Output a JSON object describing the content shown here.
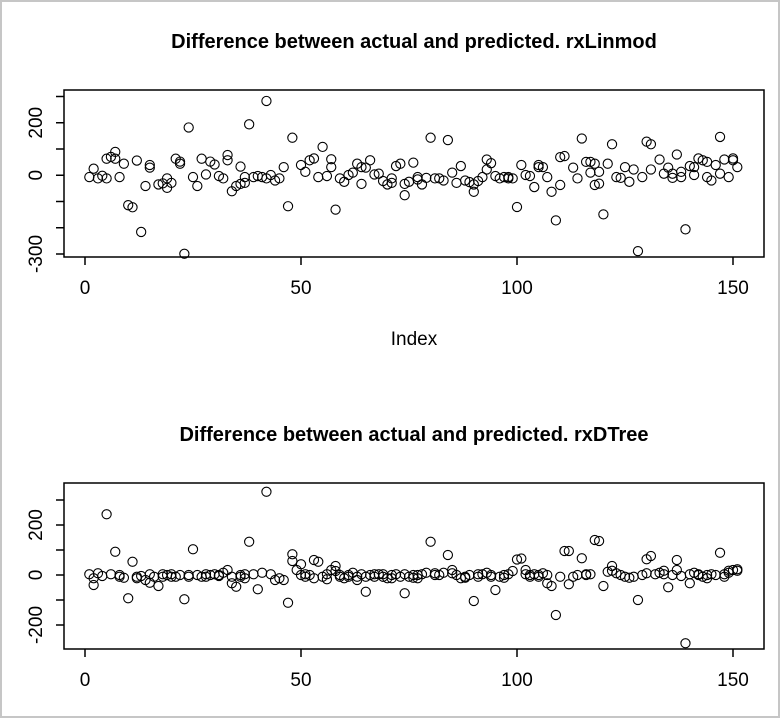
{
  "window": {
    "background": "#ffffff",
    "border_color": "#c6c6c6"
  },
  "chart_data": [
    {
      "type": "scatter",
      "title": "Difference between actual and predicted. rxLinmod",
      "xlabel": "Index",
      "ylabel": "",
      "marker": "open-circle",
      "point_color": "#000000",
      "grid": false,
      "legend": null,
      "xlim": [
        -5,
        157
      ],
      "ylim": [
        -320,
        325
      ],
      "x_ticks": [
        0,
        50,
        100,
        150
      ],
      "x_tick_labels": [
        "0",
        "50",
        "100",
        "150"
      ],
      "y_ticks": [
        300,
        200,
        100,
        0,
        -100,
        -200,
        -300
      ],
      "y_labeled_ticks": [
        200,
        0,
        -300
      ],
      "y_tick_labels": [
        "200",
        "0",
        "-300"
      ],
      "points": [
        [
          1,
          -7
        ],
        [
          2,
          25
        ],
        [
          3,
          -12
        ],
        [
          4,
          -2
        ],
        [
          5,
          -12
        ],
        [
          5,
          63
        ],
        [
          6,
          70
        ],
        [
          7,
          89
        ],
        [
          7,
          63
        ],
        [
          8,
          -7
        ],
        [
          9,
          44
        ],
        [
          10,
          -114
        ],
        [
          11,
          -122
        ],
        [
          12,
          56
        ],
        [
          13,
          -216
        ],
        [
          14,
          -41
        ],
        [
          15,
          39
        ],
        [
          15,
          29
        ],
        [
          17,
          -35
        ],
        [
          18,
          -31
        ],
        [
          19,
          -48
        ],
        [
          19,
          -12
        ],
        [
          20,
          -29
        ],
        [
          21,
          63
        ],
        [
          22,
          52
        ],
        [
          22,
          44
        ],
        [
          23,
          -299
        ],
        [
          24,
          182
        ],
        [
          25,
          -7
        ],
        [
          26,
          -41
        ],
        [
          27,
          63
        ],
        [
          28,
          3
        ],
        [
          29,
          52
        ],
        [
          30,
          41
        ],
        [
          31,
          -3
        ],
        [
          32,
          -12
        ],
        [
          33,
          77
        ],
        [
          33,
          57
        ],
        [
          34,
          -61
        ],
        [
          35,
          -41
        ],
        [
          36,
          33
        ],
        [
          36,
          -33
        ],
        [
          37,
          -29
        ],
        [
          37,
          -7
        ],
        [
          38,
          194
        ],
        [
          39,
          -7
        ],
        [
          40,
          -3
        ],
        [
          41,
          -7
        ],
        [
          42,
          283
        ],
        [
          42,
          -12
        ],
        [
          43,
          1
        ],
        [
          44,
          -20
        ],
        [
          45,
          -12
        ],
        [
          46,
          31
        ],
        [
          47,
          -118
        ],
        [
          48,
          143
        ],
        [
          50,
          39
        ],
        [
          51,
          13
        ],
        [
          52,
          57
        ],
        [
          53,
          64
        ],
        [
          54,
          -7
        ],
        [
          55,
          108
        ],
        [
          56,
          -3
        ],
        [
          57,
          31
        ],
        [
          57,
          61
        ],
        [
          58,
          -131
        ],
        [
          59,
          -12
        ],
        [
          60,
          -25
        ],
        [
          61,
          1
        ],
        [
          62,
          10
        ],
        [
          63,
          44
        ],
        [
          64,
          31
        ],
        [
          64,
          -33
        ],
        [
          65,
          29
        ],
        [
          66,
          57
        ],
        [
          67,
          3
        ],
        [
          68,
          6
        ],
        [
          69,
          -22
        ],
        [
          70,
          -35
        ],
        [
          71,
          -12
        ],
        [
          71,
          -29
        ],
        [
          72,
          35
        ],
        [
          73,
          44
        ],
        [
          74,
          -76
        ],
        [
          74,
          -33
        ],
        [
          75,
          -25
        ],
        [
          76,
          48
        ],
        [
          77,
          -7
        ],
        [
          77,
          -16
        ],
        [
          78,
          -35
        ],
        [
          79,
          -10
        ],
        [
          80,
          143
        ],
        [
          81,
          -12
        ],
        [
          82,
          -12
        ],
        [
          83,
          -20
        ],
        [
          84,
          134
        ],
        [
          85,
          10
        ],
        [
          86,
          -29
        ],
        [
          87,
          35
        ],
        [
          88,
          -20
        ],
        [
          89,
          -26
        ],
        [
          90,
          -35
        ],
        [
          90,
          -63
        ],
        [
          91,
          -22
        ],
        [
          92,
          -7
        ],
        [
          93,
          22
        ],
        [
          93,
          60
        ],
        [
          94,
          46
        ],
        [
          95,
          -3
        ],
        [
          96,
          -12
        ],
        [
          97,
          -7
        ],
        [
          98,
          -12
        ],
        [
          98,
          -7
        ],
        [
          99,
          -12
        ],
        [
          100,
          -121
        ],
        [
          101,
          39
        ],
        [
          102,
          1
        ],
        [
          103,
          -3
        ],
        [
          104,
          -45
        ],
        [
          105,
          31
        ],
        [
          105,
          39
        ],
        [
          106,
          31
        ],
        [
          107,
          -7
        ],
        [
          108,
          -63
        ],
        [
          109,
          -172
        ],
        [
          110,
          -37
        ],
        [
          110,
          69
        ],
        [
          111,
          73
        ],
        [
          113,
          29
        ],
        [
          114,
          -12
        ],
        [
          115,
          140
        ],
        [
          116,
          51
        ],
        [
          117,
          10
        ],
        [
          117,
          51
        ],
        [
          118,
          -37
        ],
        [
          118,
          44
        ],
        [
          119,
          13
        ],
        [
          119,
          -32
        ],
        [
          120,
          -149
        ],
        [
          121,
          44
        ],
        [
          122,
          118
        ],
        [
          123,
          -7
        ],
        [
          124,
          -10
        ],
        [
          125,
          31
        ],
        [
          126,
          -25
        ],
        [
          127,
          22
        ],
        [
          128,
          -289
        ],
        [
          129,
          -7
        ],
        [
          130,
          128
        ],
        [
          131,
          22
        ],
        [
          131,
          118
        ],
        [
          133,
          60
        ],
        [
          134,
          6
        ],
        [
          135,
          29
        ],
        [
          136,
          6
        ],
        [
          136,
          -10
        ],
        [
          137,
          79
        ],
        [
          138,
          -7
        ],
        [
          138,
          13
        ],
        [
          139,
          -206
        ],
        [
          140,
          35
        ],
        [
          141,
          31
        ],
        [
          141,
          1
        ],
        [
          142,
          64
        ],
        [
          143,
          57
        ],
        [
          144,
          -7
        ],
        [
          144,
          51
        ],
        [
          145,
          -20
        ],
        [
          146,
          39
        ],
        [
          147,
          6
        ],
        [
          147,
          146
        ],
        [
          148,
          60
        ],
        [
          149,
          -7
        ],
        [
          150,
          64
        ],
        [
          150,
          57
        ],
        [
          151,
          31
        ]
      ]
    },
    {
      "type": "scatter",
      "title": "Difference between actual and predicted. rxDTree",
      "xlabel": "",
      "ylabel": "",
      "marker": "open-circle",
      "point_color": "#000000",
      "grid": false,
      "legend": null,
      "xlim": [
        -5,
        157
      ],
      "ylim": [
        -296,
        368
      ],
      "x_ticks": [
        0,
        50,
        100,
        150
      ],
      "x_tick_labels": [
        "0",
        "50",
        "100",
        "150"
      ],
      "y_ticks": [
        300,
        200,
        100,
        0,
        -100,
        -200
      ],
      "y_labeled_ticks": [
        200,
        0,
        -200
      ],
      "y_tick_labels": [
        "200",
        "0",
        "-200"
      ],
      "points": [
        [
          1,
          3
        ],
        [
          2,
          -13
        ],
        [
          2,
          -40
        ],
        [
          3,
          7
        ],
        [
          4,
          -4
        ],
        [
          5,
          243
        ],
        [
          6,
          3
        ],
        [
          7,
          93
        ],
        [
          8,
          -7
        ],
        [
          8,
          0
        ],
        [
          9,
          -11
        ],
        [
          10,
          -93
        ],
        [
          11,
          53
        ],
        [
          12,
          -7
        ],
        [
          12,
          -13
        ],
        [
          13,
          -4
        ],
        [
          14,
          -20
        ],
        [
          15,
          3
        ],
        [
          15,
          -31
        ],
        [
          16,
          -7
        ],
        [
          17,
          -44
        ],
        [
          18,
          3
        ],
        [
          18,
          -7
        ],
        [
          19,
          0
        ],
        [
          20,
          -7
        ],
        [
          20,
          3
        ],
        [
          21,
          -7
        ],
        [
          22,
          0
        ],
        [
          23,
          -97
        ],
        [
          24,
          0
        ],
        [
          24,
          -7
        ],
        [
          25,
          103
        ],
        [
          26,
          0
        ],
        [
          27,
          -7
        ],
        [
          28,
          3
        ],
        [
          28,
          -7
        ],
        [
          29,
          0
        ],
        [
          30,
          3
        ],
        [
          31,
          0
        ],
        [
          31,
          -4
        ],
        [
          32,
          9
        ],
        [
          33,
          20
        ],
        [
          34,
          -7
        ],
        [
          34,
          -33
        ],
        [
          35,
          -47
        ],
        [
          36,
          0
        ],
        [
          36,
          -7
        ],
        [
          37,
          -13
        ],
        [
          37,
          3
        ],
        [
          38,
          133
        ],
        [
          39,
          3
        ],
        [
          40,
          -57
        ],
        [
          41,
          9
        ],
        [
          42,
          333
        ],
        [
          43,
          3
        ],
        [
          44,
          -20
        ],
        [
          45,
          -13
        ],
        [
          46,
          -20
        ],
        [
          47,
          -111
        ],
        [
          48,
          83
        ],
        [
          48,
          56
        ],
        [
          49,
          20
        ],
        [
          50,
          43
        ],
        [
          50,
          0
        ],
        [
          51,
          3
        ],
        [
          51,
          -7
        ],
        [
          52,
          0
        ],
        [
          53,
          60
        ],
        [
          53,
          -13
        ],
        [
          54,
          53
        ],
        [
          55,
          -7
        ],
        [
          56,
          -17
        ],
        [
          56,
          3
        ],
        [
          57,
          20
        ],
        [
          58,
          36
        ],
        [
          58,
          16
        ],
        [
          59,
          -7
        ],
        [
          59,
          0
        ],
        [
          60,
          -13
        ],
        [
          61,
          0
        ],
        [
          61,
          -7
        ],
        [
          62,
          9
        ],
        [
          63,
          -7
        ],
        [
          63,
          -20
        ],
        [
          64,
          3
        ],
        [
          65,
          -67
        ],
        [
          65,
          -7
        ],
        [
          66,
          0
        ],
        [
          67,
          3
        ],
        [
          67,
          -7
        ],
        [
          68,
          3
        ],
        [
          69,
          -7
        ],
        [
          69,
          3
        ],
        [
          70,
          -13
        ],
        [
          71,
          0
        ],
        [
          71,
          -13
        ],
        [
          72,
          3
        ],
        [
          73,
          -7
        ],
        [
          74,
          -73
        ],
        [
          74,
          3
        ],
        [
          75,
          -7
        ],
        [
          76,
          0
        ],
        [
          76,
          -11
        ],
        [
          77,
          0
        ],
        [
          77,
          -13
        ],
        [
          78,
          3
        ],
        [
          79,
          9
        ],
        [
          80,
          133
        ],
        [
          81,
          0
        ],
        [
          81,
          7
        ],
        [
          82,
          0
        ],
        [
          83,
          9
        ],
        [
          84,
          80
        ],
        [
          85,
          20
        ],
        [
          85,
          7
        ],
        [
          86,
          0
        ],
        [
          87,
          -13
        ],
        [
          88,
          -7
        ],
        [
          88,
          -11
        ],
        [
          89,
          0
        ],
        [
          90,
          -104
        ],
        [
          91,
          3
        ],
        [
          91,
          -7
        ],
        [
          92,
          3
        ],
        [
          93,
          9
        ],
        [
          94,
          -7
        ],
        [
          94,
          0
        ],
        [
          95,
          -60
        ],
        [
          96,
          -7
        ],
        [
          97,
          0
        ],
        [
          97,
          -11
        ],
        [
          98,
          3
        ],
        [
          99,
          16
        ],
        [
          100,
          62
        ],
        [
          101,
          66
        ],
        [
          102,
          20
        ],
        [
          102,
          3
        ],
        [
          103,
          0
        ],
        [
          103,
          -7
        ],
        [
          104,
          3
        ],
        [
          105,
          -7
        ],
        [
          105,
          0
        ],
        [
          106,
          7
        ],
        [
          107,
          0
        ],
        [
          107,
          -33
        ],
        [
          108,
          -44
        ],
        [
          109,
          -160
        ],
        [
          110,
          -7
        ],
        [
          111,
          96
        ],
        [
          112,
          96
        ],
        [
          112,
          -37
        ],
        [
          113,
          -7
        ],
        [
          114,
          0
        ],
        [
          115,
          67
        ],
        [
          116,
          3
        ],
        [
          116,
          0
        ],
        [
          117,
          3
        ],
        [
          118,
          140
        ],
        [
          119,
          136
        ],
        [
          120,
          -44
        ],
        [
          121,
          13
        ],
        [
          122,
          36
        ],
        [
          122,
          17
        ],
        [
          123,
          7
        ],
        [
          124,
          0
        ],
        [
          125,
          -7
        ],
        [
          126,
          -11
        ],
        [
          127,
          -7
        ],
        [
          128,
          -100
        ],
        [
          129,
          0
        ],
        [
          130,
          63
        ],
        [
          130,
          7
        ],
        [
          131,
          76
        ],
        [
          132,
          3
        ],
        [
          133,
          9
        ],
        [
          134,
          17
        ],
        [
          134,
          3
        ],
        [
          135,
          -49
        ],
        [
          136,
          0
        ],
        [
          137,
          60
        ],
        [
          137,
          20
        ],
        [
          138,
          -4
        ],
        [
          139,
          -273
        ],
        [
          140,
          -33
        ],
        [
          140,
          3
        ],
        [
          141,
          9
        ],
        [
          142,
          0
        ],
        [
          142,
          3
        ],
        [
          143,
          -7
        ],
        [
          144,
          0
        ],
        [
          144,
          -13
        ],
        [
          145,
          3
        ],
        [
          146,
          0
        ],
        [
          147,
          89
        ],
        [
          148,
          3
        ],
        [
          148,
          -7
        ],
        [
          149,
          9
        ],
        [
          149,
          17
        ],
        [
          150,
          20
        ],
        [
          151,
          23
        ],
        [
          151,
          17
        ]
      ]
    }
  ]
}
